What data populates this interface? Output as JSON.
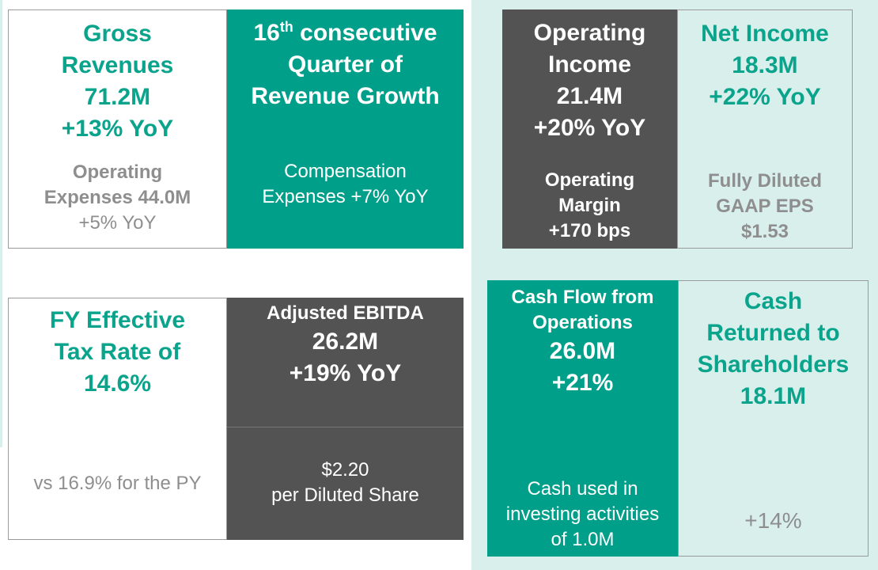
{
  "colors": {
    "teal": "#009f8a",
    "dark_gray": "#535353",
    "light_teal": "#d9efec",
    "teal_text": "#0aa38b",
    "gray_text": "#8e8e8e"
  },
  "gross_revenues": {
    "title_lines": [
      "Gross",
      "Revenues"
    ],
    "value": "71.2M",
    "change": "+13% YoY",
    "detail_lines": [
      "Operating",
      "Expenses 44.0M"
    ],
    "detail_change": "+5% YoY"
  },
  "consecutive": {
    "title_number": "16",
    "title_suffix": "th",
    "title_rest": " consecutive",
    "title_lines": [
      "Quarter of",
      "Revenue Growth"
    ],
    "detail_lines": [
      "Compensation",
      "Expenses +7% YoY"
    ]
  },
  "operating_income": {
    "title_lines": [
      "Operating",
      "Income"
    ],
    "value": "21.4M",
    "change": "+20% YoY",
    "detail_lines": [
      "Operating",
      "Margin",
      "+170 bps"
    ]
  },
  "net_income": {
    "title": "Net Income",
    "value": "18.3M",
    "change": "+22% YoY",
    "detail_lines": [
      "Fully Diluted",
      "GAAP EPS",
      "$1.53"
    ]
  },
  "tax_rate": {
    "title_lines": [
      "FY Effective",
      "Tax Rate of",
      "14.6%"
    ],
    "detail": "vs 16.9% for the PY"
  },
  "ebitda": {
    "title": "Adjusted EBITDA",
    "value": "26.2M",
    "change": "+19% YoY",
    "detail_lines": [
      "$2.20",
      "per Diluted Share"
    ]
  },
  "cash_flow": {
    "title_lines": [
      "Cash Flow from",
      "Operations"
    ],
    "value": "26.0M",
    "change": "+21%",
    "detail_lines": [
      "Cash used in",
      "investing activities",
      "of 1.0M"
    ]
  },
  "cash_returned": {
    "title_lines": [
      "Cash",
      "Returned to",
      "Shareholders",
      "18.1M"
    ],
    "change": "+14%"
  }
}
